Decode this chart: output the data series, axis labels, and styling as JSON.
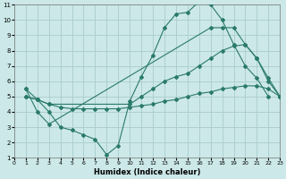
{
  "xlabel": "Humidex (Indice chaleur)",
  "bg_color": "#cce8e8",
  "grid_color": "#aacccc",
  "line_color": "#2a7a6a",
  "xlim": [
    0,
    23
  ],
  "ylim": [
    1,
    11
  ],
  "xticks": [
    0,
    1,
    2,
    3,
    4,
    5,
    6,
    7,
    8,
    9,
    10,
    11,
    12,
    13,
    14,
    15,
    16,
    17,
    18,
    19,
    20,
    21,
    22,
    23
  ],
  "yticks": [
    1,
    2,
    3,
    4,
    5,
    6,
    7,
    8,
    9,
    10,
    11
  ],
  "curves": [
    {
      "x": [
        1,
        2,
        3,
        4,
        5,
        6,
        7,
        8,
        9,
        10,
        11,
        12,
        13,
        14,
        15,
        16,
        17,
        18,
        19,
        20,
        21,
        22
      ],
      "y": [
        5.5,
        4.8,
        4.0,
        3.0,
        2.8,
        2.5,
        2.2,
        1.2,
        1.8,
        4.7,
        6.3,
        7.7,
        9.5,
        10.4,
        10.5,
        11.2,
        11.0,
        10.0,
        8.4,
        7.0,
        6.2,
        5.0
      ]
    },
    {
      "x": [
        1,
        2,
        3,
        17,
        18,
        19,
        20,
        21,
        22,
        23
      ],
      "y": [
        5.5,
        4.0,
        3.2,
        9.5,
        9.5,
        9.5,
        8.4,
        7.5,
        6.0,
        5.0
      ]
    },
    {
      "x": [
        1,
        2,
        3,
        10,
        11,
        12,
        13,
        14,
        15,
        16,
        17,
        18,
        19,
        20,
        21,
        22,
        23
      ],
      "y": [
        5.0,
        4.8,
        4.5,
        4.5,
        5.0,
        5.5,
        6.0,
        6.3,
        6.5,
        7.0,
        7.5,
        8.0,
        8.3,
        8.4,
        7.5,
        6.2,
        5.0
      ]
    },
    {
      "x": [
        1,
        2,
        3,
        4,
        5,
        6,
        7,
        8,
        9,
        10,
        11,
        12,
        13,
        14,
        15,
        16,
        17,
        18,
        19,
        20,
        21,
        22,
        23
      ],
      "y": [
        5.0,
        4.8,
        4.5,
        4.3,
        4.2,
        4.2,
        4.2,
        4.2,
        4.2,
        4.3,
        4.4,
        4.5,
        4.7,
        4.8,
        5.0,
        5.2,
        5.3,
        5.5,
        5.6,
        5.7,
        5.7,
        5.5,
        5.0
      ]
    }
  ]
}
